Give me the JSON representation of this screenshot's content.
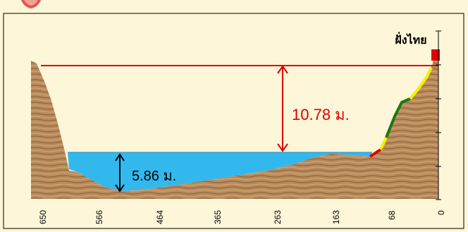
{
  "labels": {
    "bank_label": "ฝั่งไทย",
    "height_measure": "10.78 ม.",
    "depth_measure": "5.86 ม."
  },
  "axis": {
    "ticks": [
      "650",
      "566",
      "464",
      "365",
      "263",
      "163",
      "68",
      "0"
    ]
  },
  "colors": {
    "background": "#fdf6d8",
    "bank_line": "#e00000",
    "water": "#33b8ee",
    "soil": "#b98a5c",
    "segment_red": "#e00000",
    "segment_yellow": "#f5f000",
    "segment_green": "#1a7a10",
    "measure_red": "#e00000",
    "measure_black": "#000000"
  }
}
